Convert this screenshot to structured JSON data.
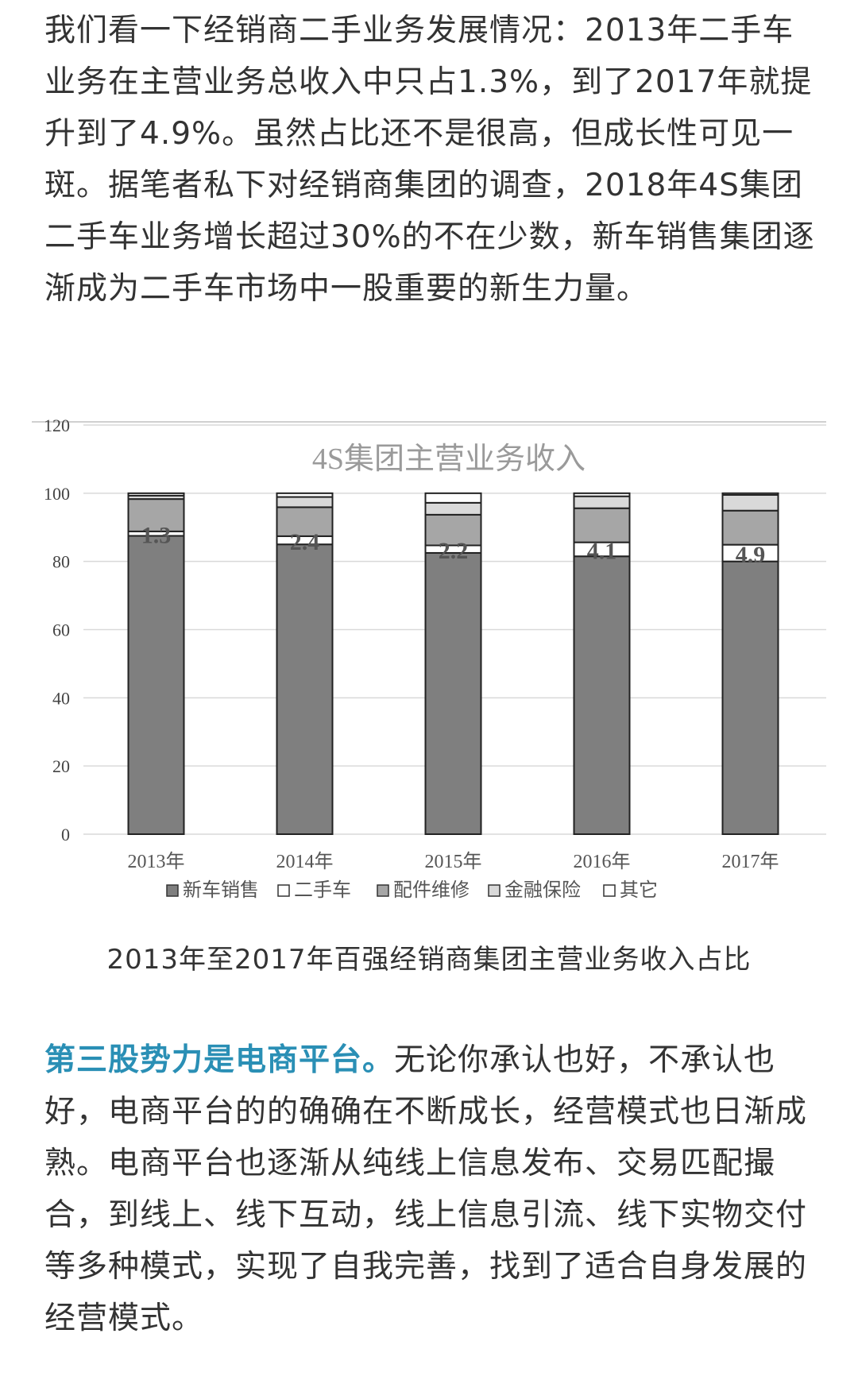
{
  "article": {
    "paragraph1": "我们看一下经销商二手业务发展情况：2013年二手车业务在主营业务总收入中只占1.3%，到了2017年就提升到了4.9%。虽然占比还不是很高，但成长性可见一斑。据笔者私下对经销商集团的调查，2018年4S集团二手车业务增长超过30%的不在少数，新车销售集团逐渐成为二手车市场中一股重要的新生力量。",
    "caption": "2013年至2017年百强经销商集团主营业务收入占比",
    "paragraph2_highlight": "第三股势力是电商平台。",
    "paragraph2_rest": "无论你承认也好，不承认也好，电商平台的的确确在不断成长，经营模式也日渐成熟。电商平台也逐渐从纯线上信息发布、交易匹配撮合，到线上、线下互动，线上信息引流、线下实物交付等多种模式，实现了自我完善，找到了适合自身发展的经营模式。"
  },
  "chart_data": {
    "type": "bar",
    "stacked": true,
    "title": "4S集团主营业务收入",
    "categories": [
      "2013年",
      "2014年",
      "2015年",
      "2016年",
      "2017年"
    ],
    "ylim": [
      0,
      120
    ],
    "yticks": [
      "0",
      "20",
      "40",
      "60",
      "80",
      "100",
      "120"
    ],
    "grid": true,
    "legend_position": "bottom",
    "series": [
      {
        "name": "新车销售",
        "color": "#7f7f7f",
        "values": [
          87.5,
          85.0,
          82.5,
          81.5,
          80.0
        ]
      },
      {
        "name": "二手车",
        "color": "#ffffff",
        "values": [
          1.3,
          2.4,
          2.2,
          4.1,
          4.9
        ]
      },
      {
        "name": "配件维修",
        "color": "#a6a6a6",
        "values": [
          9.5,
          8.5,
          9.0,
          10.0,
          10.0
        ]
      },
      {
        "name": "金融保险",
        "color": "#d9d9d9",
        "values": [
          1.0,
          3.0,
          3.5,
          3.5,
          4.6
        ]
      },
      {
        "name": "其它",
        "color": "#ffffff",
        "values": [
          0.7,
          1.1,
          2.8,
          0.9,
          0.5
        ]
      }
    ],
    "data_labels": [
      "1.3",
      "2.4",
      "2.2",
      "4.1",
      "4.9"
    ]
  }
}
